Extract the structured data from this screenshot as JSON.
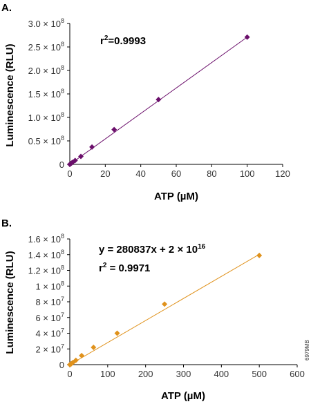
{
  "side_code": "6979MB",
  "chart_data": [
    {
      "panel": "A.",
      "type": "scatter",
      "series": [
        {
          "x": [
            0,
            0.5,
            1,
            1.5,
            3,
            6.25,
            12.5,
            25,
            50,
            100
          ],
          "y": [
            0,
            1500000,
            2800000,
            4200000,
            8200000,
            17000000,
            37000000,
            74000000,
            138000000,
            271000000
          ],
          "marker": "diamond",
          "color": "#6b0f6b",
          "trendline": {
            "slope": 2710000,
            "intercept": 0
          }
        }
      ],
      "annotation": {
        "r2_prefix": "r",
        "r2_sup": "2",
        "r2_value": "=0.9993"
      },
      "xlabel": "ATP (µM)",
      "ylabel": "Luminescence (RLU)",
      "xlim": [
        0,
        120
      ],
      "ylim": [
        0,
        300000000
      ],
      "x_ticks": [
        {
          "v": 0,
          "label": "0"
        },
        {
          "v": 20,
          "label": "20"
        },
        {
          "v": 40,
          "label": "40"
        },
        {
          "v": 60,
          "label": "60"
        },
        {
          "v": 80,
          "label": "80"
        },
        {
          "v": 100,
          "label": "100"
        },
        {
          "v": 120,
          "label": "120"
        }
      ],
      "y_ticks": [
        {
          "v": 0,
          "mant": "0",
          "exp": ""
        },
        {
          "v": 50000000,
          "mant": "0.5 × 10",
          "exp": "8"
        },
        {
          "v": 100000000,
          "mant": "1.0 × 10",
          "exp": "8"
        },
        {
          "v": 150000000,
          "mant": "1.5 × 10",
          "exp": "8"
        },
        {
          "v": 200000000,
          "mant": "2.0 × 10",
          "exp": "8"
        },
        {
          "v": 250000000,
          "mant": "2.5 × 10",
          "exp": "8"
        },
        {
          "v": 300000000,
          "mant": "3.0 × 10",
          "exp": "8"
        }
      ],
      "grid": false,
      "legend": "none"
    },
    {
      "panel": "B.",
      "type": "scatter",
      "series": [
        {
          "x": [
            0,
            2,
            4,
            8,
            16,
            31.25,
            62.5,
            125,
            250,
            500
          ],
          "y": [
            0,
            500000,
            1100000,
            2600000,
            5500000,
            11500000,
            22000000,
            40000000,
            77000000,
            139000000
          ],
          "marker": "diamond",
          "color": "#e0921c",
          "trendline": {
            "slope": 280837,
            "intercept": 0
          }
        }
      ],
      "annotation": {
        "eq_text": "y = 280837x + 2 × 10",
        "eq_sup": "16",
        "r2_prefix": "r",
        "r2_sup": "2",
        "r2_value": " = 0.9971"
      },
      "xlabel": "ATP (µM)",
      "ylabel": "Luminescence (RLU)",
      "xlim": [
        0,
        600
      ],
      "ylim": [
        0,
        160000000
      ],
      "x_ticks": [
        {
          "v": 0,
          "label": "0"
        },
        {
          "v": 100,
          "label": "100"
        },
        {
          "v": 200,
          "label": "200"
        },
        {
          "v": 300,
          "label": "300"
        },
        {
          "v": 400,
          "label": "400"
        },
        {
          "v": 500,
          "label": "500"
        },
        {
          "v": 600,
          "label": "600"
        }
      ],
      "y_ticks": [
        {
          "v": 0,
          "mant": "0",
          "exp": ""
        },
        {
          "v": 20000000,
          "mant": "2 × 10",
          "exp": "7"
        },
        {
          "v": 40000000,
          "mant": "4 × 10",
          "exp": "7"
        },
        {
          "v": 60000000,
          "mant": "6 × 10",
          "exp": "7"
        },
        {
          "v": 80000000,
          "mant": "8 × 10",
          "exp": "7"
        },
        {
          "v": 100000000,
          "mant": "1 × 10",
          "exp": "8"
        },
        {
          "v": 120000000,
          "mant": "1.2 × 10",
          "exp": "8"
        },
        {
          "v": 140000000,
          "mant": "1.4 × 10",
          "exp": "8"
        },
        {
          "v": 160000000,
          "mant": "1.6 × 10",
          "exp": "8"
        }
      ],
      "grid": false,
      "legend": "none"
    }
  ]
}
